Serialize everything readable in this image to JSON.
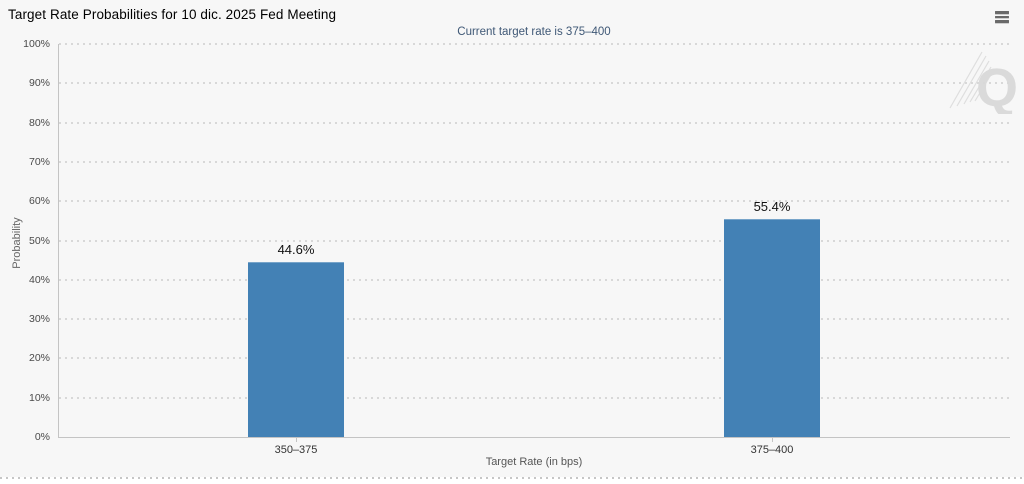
{
  "widget": {
    "icons": {
      "menu": "hamburger-menu-icon",
      "watermark_letter": "Q"
    }
  },
  "chart_data": {
    "type": "bar",
    "title": "Target Rate Probabilities for 10 dic. 2025 Fed Meeting",
    "subtitle": "Current target rate is 375–400",
    "categories": [
      "350–375",
      "375–400"
    ],
    "values": [
      44.6,
      55.4
    ],
    "value_labels": [
      "44.6%",
      "55.4%"
    ],
    "xlabel": "Target Rate (in bps)",
    "ylabel": "Probability",
    "ylim": [
      0,
      100
    ],
    "ytick_step": 10,
    "ytick_labels": [
      "0%",
      "10%",
      "20%",
      "30%",
      "40%",
      "50%",
      "60%",
      "70%",
      "80%",
      "90%",
      "100%"
    ],
    "grid": "horizontal-dotted",
    "legend": "none",
    "bar_color": "#4381b5",
    "subtitle_color": "#3f5876",
    "watermark": "Q"
  }
}
